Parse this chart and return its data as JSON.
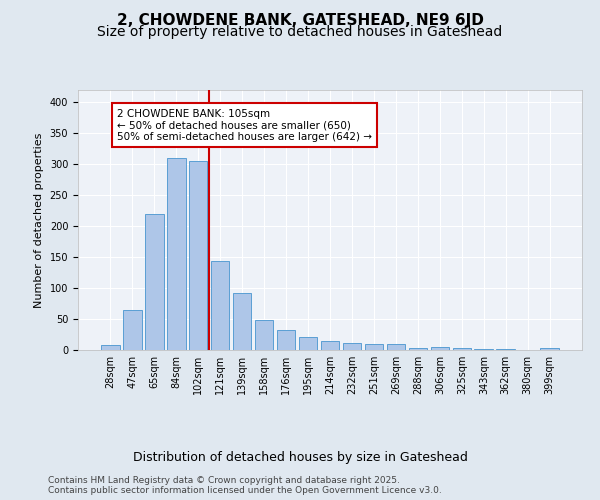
{
  "title": "2, CHOWDENE BANK, GATESHEAD, NE9 6JD",
  "subtitle": "Size of property relative to detached houses in Gateshead",
  "xlabel": "Distribution of detached houses by size in Gateshead",
  "ylabel": "Number of detached properties",
  "categories": [
    "28sqm",
    "47sqm",
    "65sqm",
    "84sqm",
    "102sqm",
    "121sqm",
    "139sqm",
    "158sqm",
    "176sqm",
    "195sqm",
    "214sqm",
    "232sqm",
    "251sqm",
    "269sqm",
    "288sqm",
    "306sqm",
    "325sqm",
    "343sqm",
    "362sqm",
    "380sqm",
    "399sqm"
  ],
  "values": [
    8,
    65,
    220,
    310,
    305,
    143,
    92,
    48,
    32,
    21,
    15,
    11,
    9,
    9,
    3,
    5,
    3,
    1,
    1,
    0,
    3
  ],
  "bar_color": "#aec6e8",
  "bar_edge_color": "#5a9fd4",
  "vline_x": 4.5,
  "vline_color": "#cc0000",
  "annotation_text": "2 CHOWDENE BANK: 105sqm\n← 50% of detached houses are smaller (650)\n50% of semi-detached houses are larger (642) →",
  "annotation_box_color": "#ffffff",
  "annotation_box_edge_color": "#cc0000",
  "ylim": [
    0,
    420
  ],
  "yticks": [
    0,
    50,
    100,
    150,
    200,
    250,
    300,
    350,
    400
  ],
  "bg_color": "#e0e8f0",
  "plot_bg_color": "#eef2f8",
  "grid_color": "#ffffff",
  "footer": "Contains HM Land Registry data © Crown copyright and database right 2025.\nContains public sector information licensed under the Open Government Licence v3.0.",
  "title_fontsize": 11,
  "subtitle_fontsize": 10,
  "ylabel_fontsize": 8,
  "xlabel_fontsize": 9,
  "tick_fontsize": 7,
  "ann_fontsize": 7.5,
  "footer_fontsize": 6.5
}
